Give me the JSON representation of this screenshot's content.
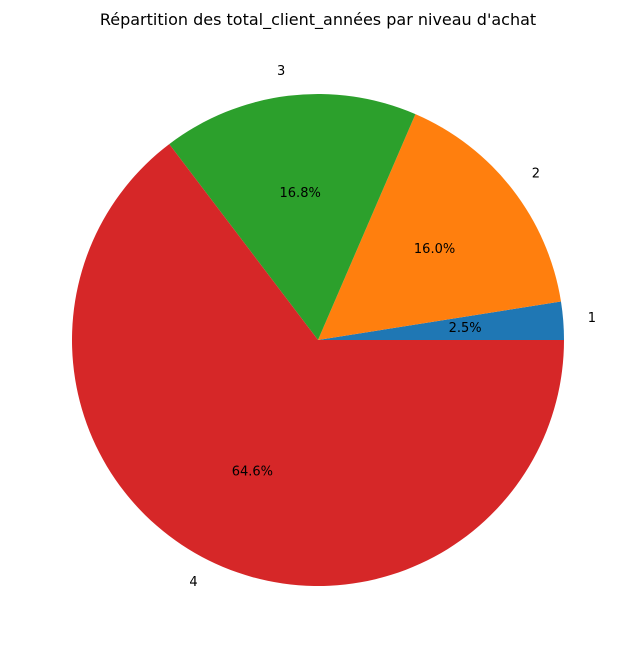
{
  "chart_data": {
    "type": "pie",
    "title": "Répartition des total_client_années par niveau d'achat",
    "categories": [
      "1",
      "2",
      "3",
      "4"
    ],
    "values": [
      2.5,
      16.0,
      16.8,
      64.6
    ],
    "percent_labels": [
      "2.5%",
      "16.0%",
      "16.8%",
      "64.6%"
    ],
    "colors": [
      "#1f77b4",
      "#ff7f0e",
      "#2ca02c",
      "#d62728"
    ],
    "start_angle_deg": 0,
    "direction": "counterclockwise",
    "legend": "none"
  }
}
